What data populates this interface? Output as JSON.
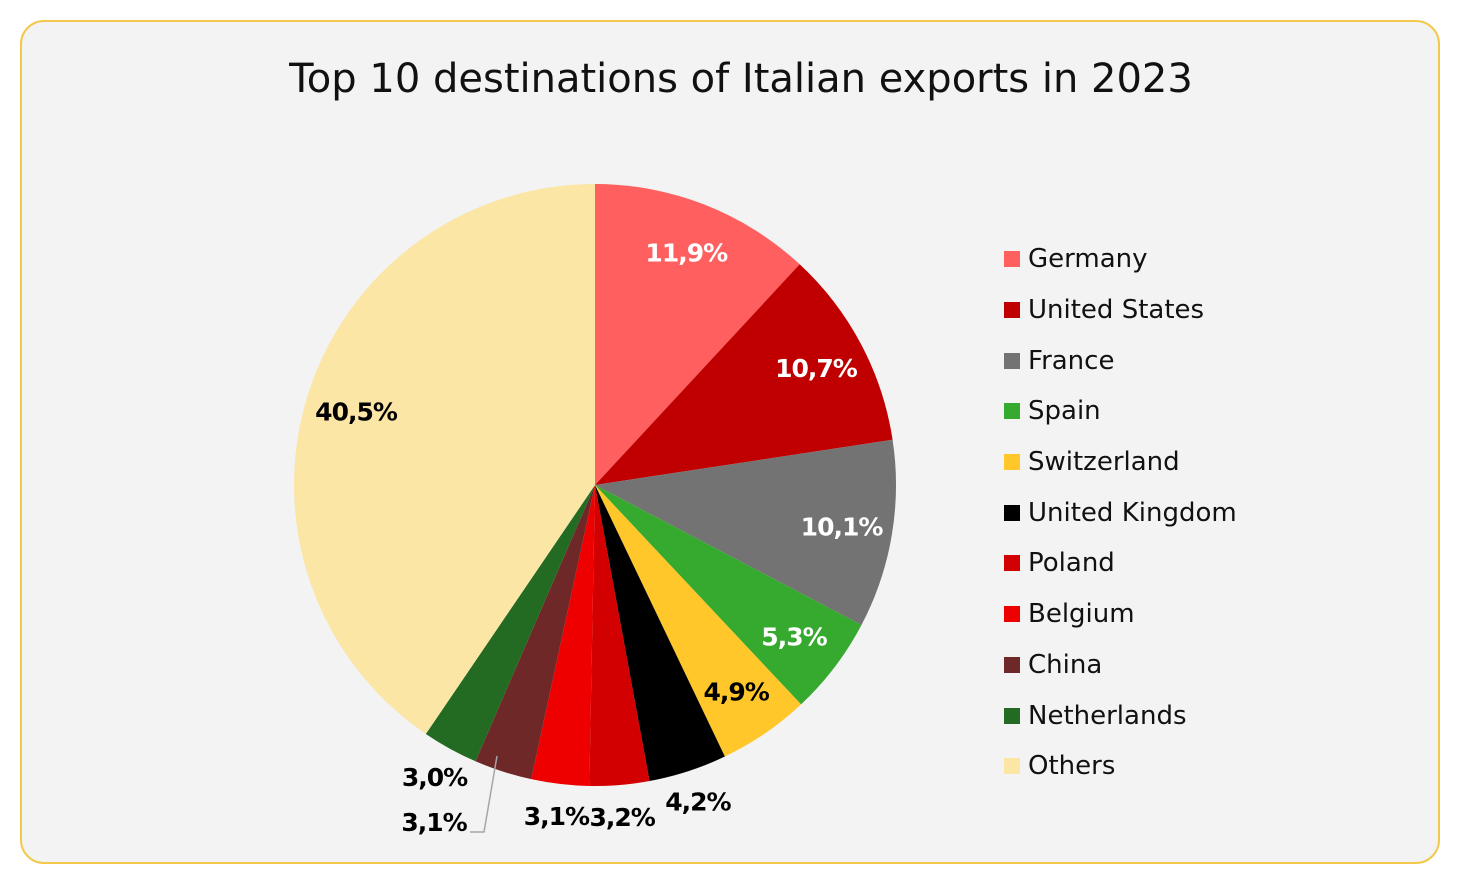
{
  "chart_data": {
    "type": "pie",
    "title": "Top 10 destinations of Italian exports in 2023",
    "categories": [
      "Germany",
      "United States",
      "France",
      "Spain",
      "Switzerland",
      "United Kingdom",
      "Poland",
      "Belgium",
      "China",
      "Netherlands",
      "Others"
    ],
    "values": [
      11.9,
      10.7,
      10.1,
      5.3,
      4.9,
      4.2,
      3.2,
      3.1,
      3.1,
      3.0,
      40.5
    ],
    "labels": [
      "11,9%",
      "10,7%",
      "10,1%",
      "5,3%",
      "4,9%",
      "4,2%",
      "3,2%",
      "3,1%",
      "3,1%",
      "3,0%",
      "40,5%"
    ],
    "colors": [
      "#FF5F5F",
      "#C00000",
      "#737373",
      "#36A92F",
      "#FFC729",
      "#000000",
      "#D20000",
      "#EE0000",
      "#6E2828",
      "#236B23",
      "#FBE6A6"
    ],
    "label_colors": [
      "#FFFFFF",
      "#FFFFFF",
      "#FFFFFF",
      "#FFFFFF",
      "#000000",
      "#000000",
      "#000000",
      "#000000",
      "#000000",
      "#000000",
      "#000000"
    ],
    "start_angle": "top",
    "direction": "clockwise",
    "legend_position": "right"
  }
}
